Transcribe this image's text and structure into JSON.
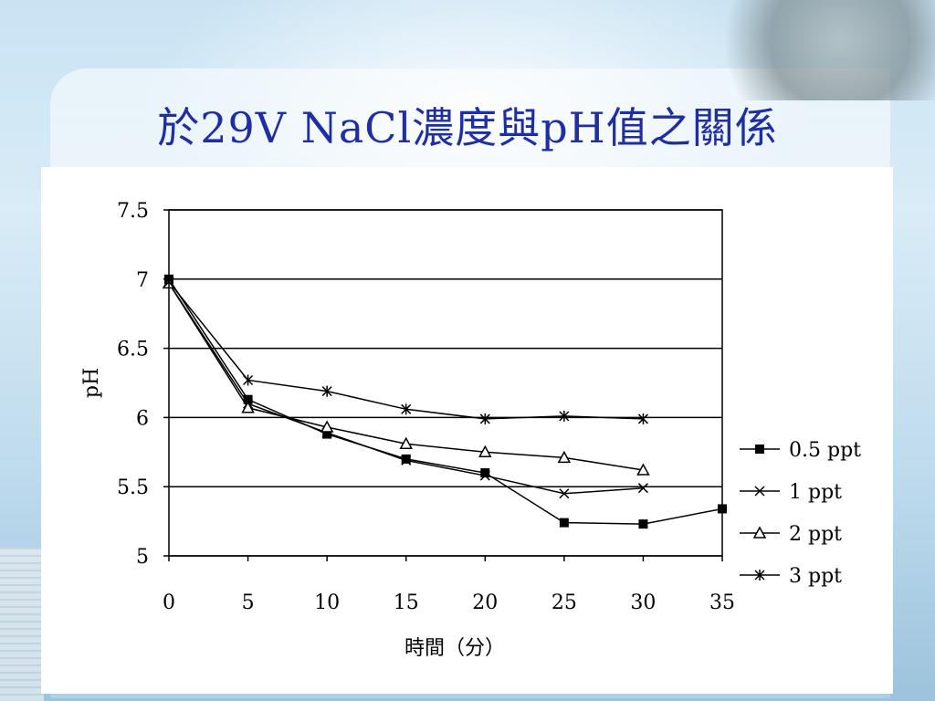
{
  "slide": {
    "title": "於29V NaCl濃度與pH值之關係"
  },
  "chart_data": {
    "type": "line",
    "title": "",
    "xlabel": "時間（分）",
    "ylabel": "pH",
    "xlim": [
      0,
      35
    ],
    "ylim": [
      5,
      7.5
    ],
    "x_ticks": [
      "0",
      "5",
      "10",
      "15",
      "20",
      "25",
      "30",
      "35"
    ],
    "y_ticks": [
      "5",
      "5.5",
      "6",
      "6.5",
      "7",
      "7.5"
    ],
    "grid": "horizontal",
    "legend_position": "right",
    "series": [
      {
        "name": "0.5 ppt",
        "marker": "square-filled",
        "x": [
          0,
          5,
          10,
          15,
          20,
          25,
          30,
          35
        ],
        "y": [
          7.0,
          6.13,
          5.88,
          5.7,
          5.6,
          5.24,
          5.23,
          5.34
        ]
      },
      {
        "name": "1 ppt",
        "marker": "x",
        "x": [
          0,
          5,
          10,
          15,
          20,
          25,
          30
        ],
        "y": [
          6.97,
          6.1,
          5.89,
          5.69,
          5.58,
          5.45,
          5.49
        ]
      },
      {
        "name": "2 ppt",
        "marker": "triangle-open",
        "x": [
          0,
          5,
          10,
          15,
          20,
          25,
          30
        ],
        "y": [
          6.97,
          6.07,
          5.93,
          5.81,
          5.75,
          5.71,
          5.62
        ]
      },
      {
        "name": "3 ppt",
        "marker": "asterisk",
        "x": [
          0,
          5,
          10,
          15,
          20,
          25,
          30
        ],
        "y": [
          6.98,
          6.27,
          6.19,
          6.06,
          5.99,
          6.01,
          5.99
        ]
      }
    ]
  }
}
